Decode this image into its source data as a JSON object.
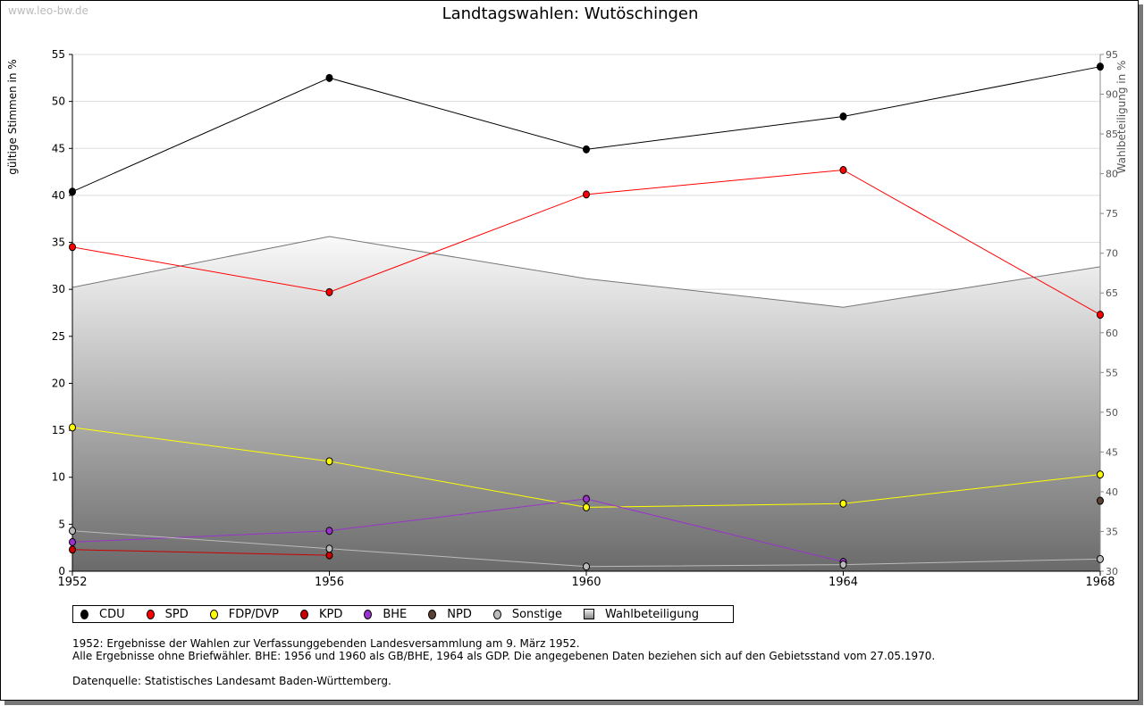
{
  "watermark": "www.leo-bw.de",
  "chart_data": {
    "type": "line",
    "title": "Landtagswahlen: Wutöschingen",
    "ylabel": "gültige Stimmen in %",
    "y2label": "Wahlbeteiligung in %",
    "x": [
      "1952",
      "1956",
      "1960",
      "1964",
      "1968"
    ],
    "ylim": [
      0,
      55
    ],
    "yticks": [
      0,
      5,
      10,
      15,
      20,
      25,
      30,
      35,
      40,
      45,
      50,
      55
    ],
    "y2lim": [
      30,
      95
    ],
    "y2ticks": [
      30,
      35,
      40,
      45,
      50,
      55,
      60,
      65,
      70,
      75,
      80,
      85,
      90,
      95
    ],
    "series": [
      {
        "name": "CDU",
        "color": "#000000",
        "values": [
          40.4,
          52.5,
          44.9,
          48.4,
          53.7
        ]
      },
      {
        "name": "SPD",
        "color": "#ff0000",
        "values": [
          34.5,
          29.7,
          40.1,
          42.7,
          27.3
        ]
      },
      {
        "name": "FDP/DVP",
        "color": "#ffff00",
        "values": [
          15.3,
          11.7,
          6.8,
          7.2,
          10.3
        ]
      },
      {
        "name": "KPD",
        "color": "#cc0000",
        "values": [
          2.3,
          1.7,
          null,
          null,
          null
        ]
      },
      {
        "name": "BHE",
        "color": "#9933cc",
        "values": [
          3.1,
          4.3,
          7.7,
          1.0,
          null
        ]
      },
      {
        "name": "NPD",
        "color": "#5c4033",
        "values": [
          null,
          null,
          null,
          null,
          7.5
        ]
      },
      {
        "name": "Sonstige",
        "color": "#bbbbbb",
        "values": [
          4.3,
          2.4,
          0.5,
          0.7,
          1.3
        ]
      }
    ],
    "turnout": {
      "name": "Wahlbeteiligung",
      "values": [
        65.7,
        72.1,
        66.8,
        63.2,
        68.3
      ]
    },
    "legend_position": "bottom"
  },
  "notes": [
    "1952: Ergebnisse der Wahlen zur Verfassunggebenden Landesversammlung am 9. März 1952.",
    "Alle Ergebnisse ohne Briefwähler. BHE: 1956 und 1960 als GB/BHE, 1964 als GDP. Die angegebenen Daten beziehen sich auf den Gebietsstand vom 27.05.1970.",
    "Datenquelle: Statistisches Landesamt Baden-Württemberg."
  ]
}
